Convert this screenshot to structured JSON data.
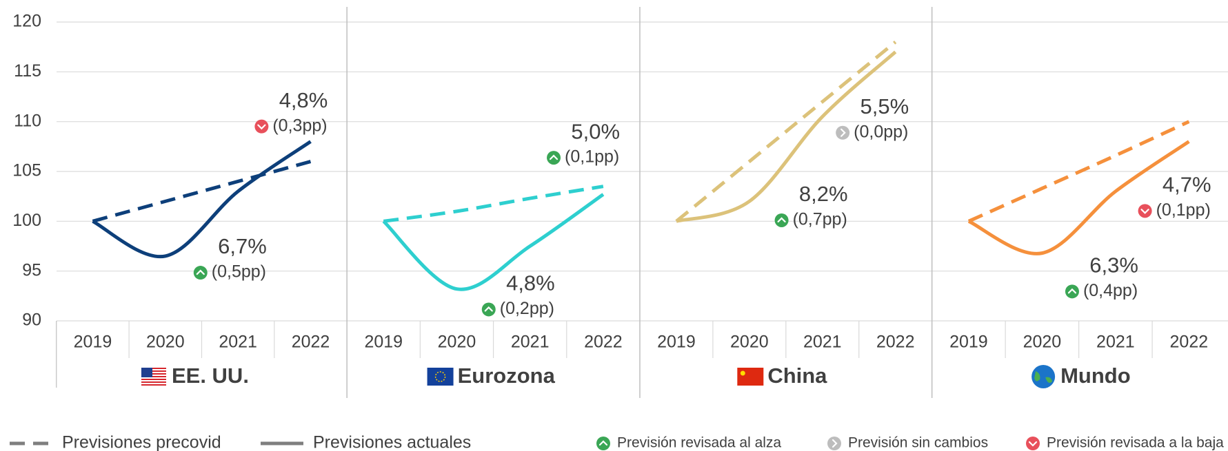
{
  "chart_data": {
    "type": "line",
    "ylim": [
      90,
      120
    ],
    "yticks": [
      90,
      95,
      100,
      105,
      110,
      115,
      120
    ],
    "grid": true,
    "series_styles": [
      {
        "name": "Previsiones precovid",
        "dash": true
      },
      {
        "name": "Previsiones actuales",
        "dash": false
      }
    ],
    "markers": [
      {
        "direction": "up",
        "label": "Previsión revisada al alza",
        "color": "#3aa655"
      },
      {
        "direction": "same",
        "label": "Previsión sin cambios",
        "color": "#bdbdbd"
      },
      {
        "direction": "down",
        "label": "Previsión revisada a la baja",
        "color": "#e8505b"
      }
    ],
    "panels": [
      {
        "title": "EE. UU.",
        "color": "#0d3f7a",
        "categories": [
          "2019",
          "2020",
          "2021",
          "2022"
        ],
        "precovid": [
          100,
          102,
          104,
          106
        ],
        "actual": [
          100,
          96.5,
          103,
          108
        ],
        "annotations": [
          {
            "value": 6.7,
            "label": "6,7%",
            "change": 0.5,
            "change_label": "(0,5pp)",
            "direction": "up"
          },
          {
            "value": 4.8,
            "label": "4,8%",
            "change": 0.3,
            "change_label": "(0,3pp)",
            "direction": "down"
          }
        ]
      },
      {
        "title": "Eurozona",
        "color": "#2ecfcf",
        "categories": [
          "2019",
          "2020",
          "2021",
          "2022"
        ],
        "precovid": [
          100,
          101,
          102.3,
          103.5
        ],
        "actual": [
          100,
          93.2,
          97.5,
          102.7
        ],
        "annotations": [
          {
            "value": 4.8,
            "label": "4,8%",
            "change": 0.2,
            "change_label": "(0,2pp)",
            "direction": "up"
          },
          {
            "value": 5.0,
            "label": "5,0%",
            "change": 0.1,
            "change_label": "(0,1pp)",
            "direction": "up"
          }
        ]
      },
      {
        "title": "China",
        "color": "#dcc27a",
        "categories": [
          "2019",
          "2020",
          "2021",
          "2022"
        ],
        "precovid": [
          100,
          106,
          112,
          118
        ],
        "actual": [
          100,
          102,
          110.5,
          117
        ],
        "annotations": [
          {
            "value": 8.2,
            "label": "8,2%",
            "change": 0.7,
            "change_label": "(0,7pp)",
            "direction": "up"
          },
          {
            "value": 5.5,
            "label": "5,5%",
            "change": 0.0,
            "change_label": "(0,0pp)",
            "direction": "same"
          }
        ]
      },
      {
        "title": "Mundo",
        "color": "#f5903c",
        "categories": [
          "2019",
          "2020",
          "2021",
          "2022"
        ],
        "precovid": [
          100,
          103.3,
          106.6,
          110
        ],
        "actual": [
          100,
          96.8,
          103,
          108
        ],
        "annotations": [
          {
            "value": 6.3,
            "label": "6,3%",
            "change": 0.4,
            "change_label": "(0,4pp)",
            "direction": "up"
          },
          {
            "value": 4.7,
            "label": "4,7%",
            "change": 0.1,
            "change_label": "(0,1pp)",
            "direction": "down"
          }
        ]
      }
    ]
  }
}
